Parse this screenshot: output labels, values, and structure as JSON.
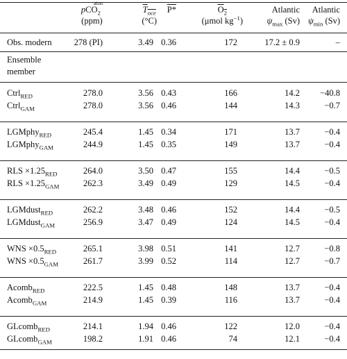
{
  "header": {
    "col_pco2": {
      "pre": "p",
      "main": "CO",
      "sub": "2",
      "sup": "atm",
      "unit": "(ppm)"
    },
    "col_toce": {
      "main": "T",
      "sub": "oce",
      "unit": "(°C)"
    },
    "col_p": {
      "main": "P*"
    },
    "col_o2": {
      "main": "O",
      "sub": "2",
      "unit": "(μmol kg",
      "unit_sup": "−1",
      "unit_end": ")"
    },
    "col_psimax": {
      "line1": "Atlantic",
      "sym": "ψ",
      "sub": "max",
      "unit": " (Sv)"
    },
    "col_psimin": {
      "line1": "Atlantic",
      "sym": "ψ",
      "sub": "min",
      "unit": " (Sv)"
    }
  },
  "obs": {
    "label": "Obs. modern",
    "pco2": "278 (PI)",
    "toce": "3.49",
    "p": "0.36",
    "o2": "172",
    "psimax": "17.2 ± 0.9",
    "psimin": "–"
  },
  "ensemble_label": {
    "line1": "Ensemble",
    "line2": "member"
  },
  "groups": [
    {
      "rows": [
        {
          "base": "Ctrl",
          "sub": "RED",
          "pco2": "278.0",
          "toce": "3.56",
          "p": "0.43",
          "o2": "166",
          "psimax": "14.2",
          "psimin": "−40.8"
        },
        {
          "base": "Ctrl",
          "sub": "GAM",
          "pco2": "278.0",
          "toce": "3.56",
          "p": "0.46",
          "o2": "144",
          "psimax": "14.3",
          "psimin": "−0.7"
        }
      ]
    },
    {
      "rows": [
        {
          "base": "LGMphy",
          "sub": "RED",
          "pco2": "245.4",
          "toce": "1.45",
          "p": "0.34",
          "o2": "171",
          "psimax": "13.7",
          "psimin": "−0.4"
        },
        {
          "base": "LGMphy",
          "sub": "GAM",
          "pco2": "244.9",
          "toce": "1.45",
          "p": "0.35",
          "o2": "149",
          "psimax": "13.7",
          "psimin": "−0.4"
        }
      ]
    },
    {
      "rows": [
        {
          "base": "RLS ×1.25",
          "sub": "RED",
          "pco2": "264.0",
          "toce": "3.50",
          "p": "0.47",
          "o2": "155",
          "psimax": "14.4",
          "psimin": "−0.5"
        },
        {
          "base": "RLS ×1.25",
          "sub": "GAM",
          "pco2": "262.3",
          "toce": "3.49",
          "p": "0.49",
          "o2": "129",
          "psimax": "14.5",
          "psimin": "−0.4"
        }
      ]
    },
    {
      "rows": [
        {
          "base": "LGMdust",
          "sub": "RED",
          "pco2": "262.2",
          "toce": "3.48",
          "p": "0.46",
          "o2": "152",
          "psimax": "14.4",
          "psimin": "−0.5"
        },
        {
          "base": "LGMdust",
          "sub": "GAM",
          "pco2": "256.9",
          "toce": "3.47",
          "p": "0.49",
          "o2": "124",
          "psimax": "14.5",
          "psimin": "−0.4"
        }
      ]
    },
    {
      "rows": [
        {
          "base": "WNS ×0.5",
          "sub": "RED",
          "pco2": "265.1",
          "toce": "3.98",
          "p": "0.51",
          "o2": "141",
          "psimax": "12.7",
          "psimin": "−0.8"
        },
        {
          "base": "WNS ×0.5",
          "sub": "GAM",
          "pco2": "261.7",
          "toce": "3.99",
          "p": "0.52",
          "o2": "114",
          "psimax": "12.7",
          "psimin": "−0.7"
        }
      ]
    },
    {
      "rows": [
        {
          "base": "Acomb",
          "sub": "RED",
          "pco2": "222.5",
          "toce": "1.45",
          "p": "0.48",
          "o2": "148",
          "psimax": "13.7",
          "psimin": "−0.4"
        },
        {
          "base": "Acomb",
          "sub": "GAM",
          "pco2": "214.9",
          "toce": "1.45",
          "p": "0.39",
          "o2": "116",
          "psimax": "13.7",
          "psimin": "−0.4"
        }
      ]
    },
    {
      "rows": [
        {
          "base": "GLcomb",
          "sub": "RED",
          "pco2": "214.1",
          "toce": "1.94",
          "p": "0.46",
          "o2": "122",
          "psimax": "12.0",
          "psimin": "−0.4"
        },
        {
          "base": "GLcomb",
          "sub": "GAM",
          "pco2": "198.2",
          "toce": "1.91",
          "p": "0.46",
          "o2": "74",
          "psimax": "12.1",
          "psimin": "−0.4"
        }
      ]
    }
  ]
}
